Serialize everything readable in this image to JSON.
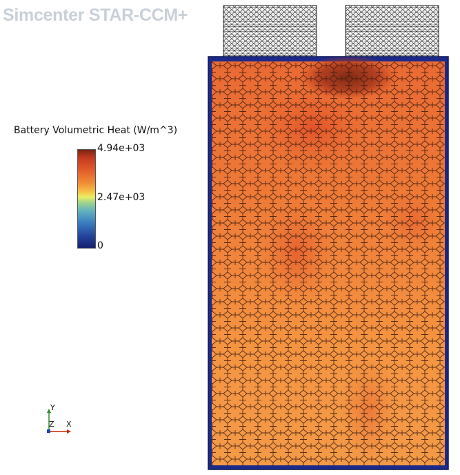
{
  "app": {
    "title": "Simcenter STAR-CCM+"
  },
  "legend": {
    "title": "Battery Volumetric Heat (W/m^3)",
    "max_label": "4.94e+03",
    "mid_label": "2.47e+03",
    "min_label": "0"
  },
  "axes": {
    "y": "Y",
    "z": "Z",
    "x": "X"
  },
  "colors": {
    "boundary": "#1b2a8a",
    "cell_base": "#f2933f",
    "hot": "#8a2d17",
    "background": "#ffffff",
    "axis_y": "#2e8b2e",
    "axis_x": "#cc2200",
    "axis_z": "#1a40b0"
  }
}
